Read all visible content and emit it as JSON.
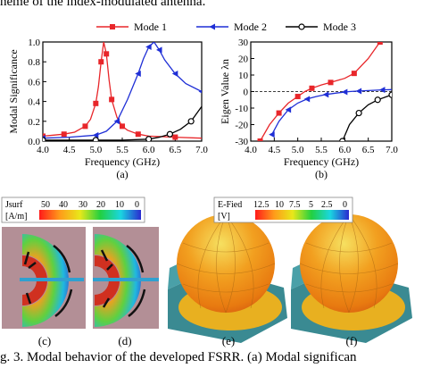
{
  "header_fragment": "heme of the index-modulated antenna.",
  "caption_fragment": "g. 3.    Modal behavior of the developed FSRR. (a) Modal significan",
  "legend": [
    {
      "name": "Mode 1",
      "color": "#e8262a",
      "marker": "square"
    },
    {
      "name": "Mode 2",
      "color": "#1f2fd6",
      "marker": "triangle"
    },
    {
      "name": "Mode 3",
      "color": "#000000",
      "marker": "circle"
    }
  ],
  "chart_data": [
    {
      "type": "line",
      "panel_label": "(a)",
      "xlabel": "Frequency (GHz)",
      "ylabel": "Modal Significance",
      "xlim": [
        4.0,
        7.0
      ],
      "ylim": [
        0.0,
        1.0
      ],
      "xticks": [
        "4.0",
        "4.5",
        "5.0",
        "5.5",
        "6.0",
        "6.5",
        "7.0"
      ],
      "yticks": [
        "0.0",
        "0.2",
        "0.4",
        "0.6",
        "0.8",
        "1.0"
      ],
      "series": [
        {
          "name": "Mode 1",
          "x": [
            4.0,
            4.2,
            4.4,
            4.6,
            4.8,
            4.9,
            5.0,
            5.05,
            5.1,
            5.15,
            5.2,
            5.25,
            5.3,
            5.4,
            5.5,
            5.6,
            5.8,
            6.0,
            6.5,
            7.0
          ],
          "y": [
            0.05,
            0.06,
            0.07,
            0.09,
            0.15,
            0.22,
            0.38,
            0.55,
            0.8,
            1.0,
            0.88,
            0.62,
            0.42,
            0.24,
            0.15,
            0.11,
            0.07,
            0.05,
            0.04,
            0.03
          ]
        },
        {
          "name": "Mode 2",
          "x": [
            4.0,
            4.5,
            5.0,
            5.2,
            5.4,
            5.6,
            5.8,
            5.9,
            6.0,
            6.1,
            6.2,
            6.3,
            6.5,
            6.7,
            7.0
          ],
          "y": [
            0.03,
            0.04,
            0.06,
            0.1,
            0.2,
            0.42,
            0.68,
            0.83,
            0.95,
            1.0,
            0.92,
            0.82,
            0.68,
            0.58,
            0.5
          ]
        },
        {
          "name": "Mode 3",
          "x": [
            4.0,
            4.5,
            5.0,
            5.5,
            6.0,
            6.2,
            6.4,
            6.6,
            6.8,
            7.0
          ],
          "y": [
            0.01,
            0.01,
            0.01,
            0.01,
            0.02,
            0.04,
            0.07,
            0.12,
            0.2,
            0.35
          ]
        }
      ]
    },
    {
      "type": "line",
      "panel_label": "(b)",
      "xlabel": "Frequency (GHz)",
      "ylabel": "Eigen Value λn",
      "xlim": [
        4.0,
        7.0
      ],
      "ylim": [
        -30,
        30
      ],
      "xticks": [
        "4.0",
        "4.5",
        "5.0",
        "5.5",
        "6.0",
        "6.5",
        "7.0"
      ],
      "yticks": [
        "-30",
        "-20",
        "-10",
        "0",
        "10",
        "20",
        "30"
      ],
      "reference_line": 0,
      "series": [
        {
          "name": "Mode 1",
          "x": [
            4.2,
            4.4,
            4.6,
            4.8,
            5.0,
            5.15,
            5.3,
            5.5,
            5.7,
            6.0,
            6.2,
            6.5,
            6.75
          ],
          "y": [
            -30,
            -20,
            -13,
            -7,
            -3,
            0,
            2,
            4,
            5.5,
            8,
            11,
            20,
            30
          ]
        },
        {
          "name": "Mode 2",
          "x": [
            4.45,
            4.6,
            4.8,
            5.0,
            5.2,
            5.4,
            5.6,
            5.8,
            6.0,
            6.1,
            6.3,
            6.5,
            6.8,
            7.0
          ],
          "y": [
            -26,
            -18,
            -11,
            -7,
            -4.5,
            -3,
            -1.8,
            -1,
            -0.3,
            0,
            0.3,
            0.6,
            1,
            1.2
          ]
        },
        {
          "name": "Mode 3",
          "x": [
            5.95,
            6.1,
            6.3,
            6.5,
            6.7,
            6.9,
            7.0
          ],
          "y": [
            -30,
            -20,
            -13,
            -8,
            -5,
            -3,
            -2
          ]
        }
      ]
    }
  ],
  "panels": {
    "c": {
      "label": "(c)",
      "scale_title": "Jsurf",
      "scale_unit": "[A/m]",
      "ticks": [
        "50",
        "40",
        "30",
        "20",
        "10",
        "0"
      ]
    },
    "d": {
      "label": "(d)"
    },
    "e": {
      "label": "(e)",
      "scale_title": "E-Fied",
      "scale_unit": "[V]",
      "ticks": [
        "12.5",
        "10",
        "7.5",
        "5",
        "2.5",
        "0"
      ]
    },
    "f": {
      "label": "(f)"
    }
  },
  "colors": {
    "scale": [
      "#ff1a1a",
      "#ff9a1a",
      "#e8e81a",
      "#22d040",
      "#1ad6e0",
      "#2a2ad0"
    ]
  }
}
